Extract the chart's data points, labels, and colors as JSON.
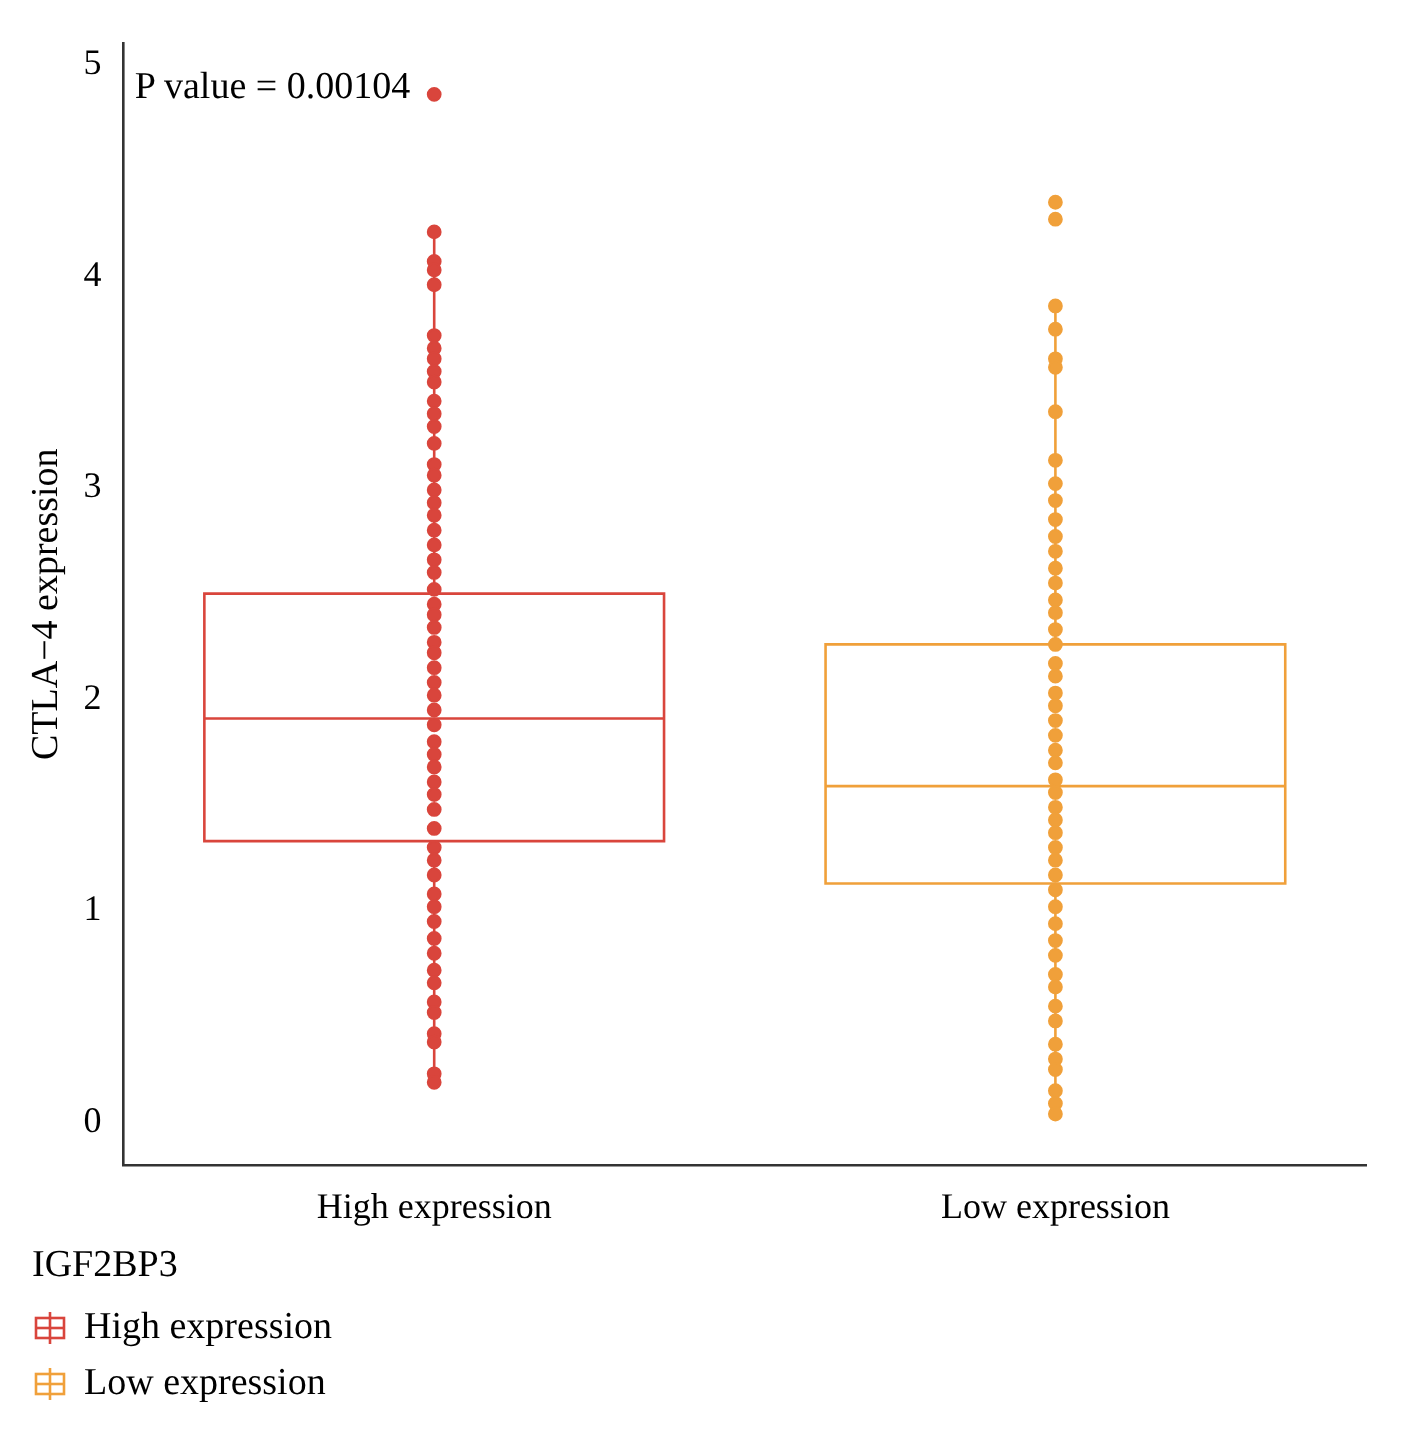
{
  "chart_data": {
    "type": "box",
    "ylabel": "CTLA−4 expression",
    "legend_title": "IGF2BP3",
    "legend": "bottom",
    "marker": "circle",
    "categories": [
      "High expression",
      "Low expression"
    ],
    "ylim": [
      -0.2,
      5.1
    ],
    "yticks": [
      0,
      1,
      2,
      3,
      4,
      5
    ],
    "annotations": [
      "P value = 0.00104"
    ],
    "series": [
      {
        "name": "High expression",
        "color": "#d9453c",
        "boxes": [
          {
            "low": 0.19,
            "q1": 1.33,
            "median": 1.91,
            "q3": 2.5,
            "high": 4.21
          },
          null
        ]
      },
      {
        "name": "Low expression",
        "color": "#f0a03a",
        "boxes": [
          null,
          {
            "low": 0.04,
            "q1": 1.13,
            "median": 1.59,
            "q3": 2.26,
            "high": 3.86
          }
        ]
      },
      {
        "type": "scatter",
        "color": "#d9453c",
        "x": [
          "High expression",
          "High expression",
          "High expression",
          "High expression",
          "High expression",
          "High expression",
          "High expression",
          "High expression",
          "High expression",
          "High expression",
          "High expression",
          "High expression",
          "High expression",
          "High expression",
          "High expression",
          "High expression",
          "High expression",
          "High expression",
          "High expression",
          "High expression",
          "High expression",
          "High expression",
          "High expression",
          "High expression",
          "High expression",
          "High expression",
          "High expression",
          "High expression",
          "High expression",
          "High expression",
          "High expression",
          "High expression",
          "High expression",
          "High expression",
          "High expression",
          "High expression",
          "High expression",
          "High expression",
          "High expression",
          "High expression",
          "High expression",
          "High expression",
          "High expression",
          "High expression",
          "High expression",
          "High expression",
          "High expression",
          "High expression",
          "High expression",
          "High expression",
          "High expression",
          "High expression",
          "High expression",
          "High expression",
          "High expression",
          "High expression",
          "High expression"
        ],
        "values": [
          4.86,
          4.21,
          4.07,
          4.03,
          3.96,
          3.72,
          3.66,
          3.61,
          3.55,
          3.5,
          3.41,
          3.35,
          3.29,
          3.21,
          3.11,
          3.06,
          2.99,
          2.93,
          2.87,
          2.8,
          2.73,
          2.66,
          2.6,
          2.52,
          2.45,
          2.4,
          2.34,
          2.27,
          2.22,
          2.15,
          2.08,
          2.02,
          1.95,
          1.88,
          1.8,
          1.74,
          1.68,
          1.61,
          1.55,
          1.48,
          1.39,
          1.3,
          1.24,
          1.17,
          1.08,
          1.02,
          0.95,
          0.87,
          0.8,
          0.72,
          0.66,
          0.57,
          0.52,
          0.42,
          0.38,
          0.23,
          0.19
        ]
      },
      {
        "type": "scatter",
        "color": "#f0a03a",
        "x": [
          "Low expression",
          "Low expression",
          "Low expression",
          "Low expression",
          "Low expression",
          "Low expression",
          "Low expression",
          "Low expression",
          "Low expression",
          "Low expression",
          "Low expression",
          "Low expression",
          "Low expression",
          "Low expression",
          "Low expression",
          "Low expression",
          "Low expression",
          "Low expression",
          "Low expression",
          "Low expression",
          "Low expression",
          "Low expression",
          "Low expression",
          "Low expression",
          "Low expression",
          "Low expression",
          "Low expression",
          "Low expression",
          "Low expression",
          "Low expression",
          "Low expression",
          "Low expression",
          "Low expression",
          "Low expression",
          "Low expression",
          "Low expression",
          "Low expression",
          "Low expression",
          "Low expression",
          "Low expression",
          "Low expression",
          "Low expression",
          "Low expression",
          "Low expression",
          "Low expression",
          "Low expression",
          "Low expression",
          "Low expression",
          "Low expression",
          "Low expression"
        ],
        "values": [
          4.35,
          4.27,
          3.86,
          3.75,
          3.61,
          3.57,
          3.36,
          3.13,
          3.02,
          2.94,
          2.85,
          2.77,
          2.7,
          2.62,
          2.55,
          2.47,
          2.41,
          2.33,
          2.26,
          2.17,
          2.11,
          2.03,
          1.97,
          1.9,
          1.83,
          1.76,
          1.7,
          1.62,
          1.56,
          1.49,
          1.43,
          1.37,
          1.3,
          1.24,
          1.17,
          1.1,
          1.02,
          0.94,
          0.86,
          0.79,
          0.7,
          0.64,
          0.55,
          0.48,
          0.37,
          0.3,
          0.25,
          0.15,
          0.09,
          0.04
        ]
      }
    ]
  }
}
